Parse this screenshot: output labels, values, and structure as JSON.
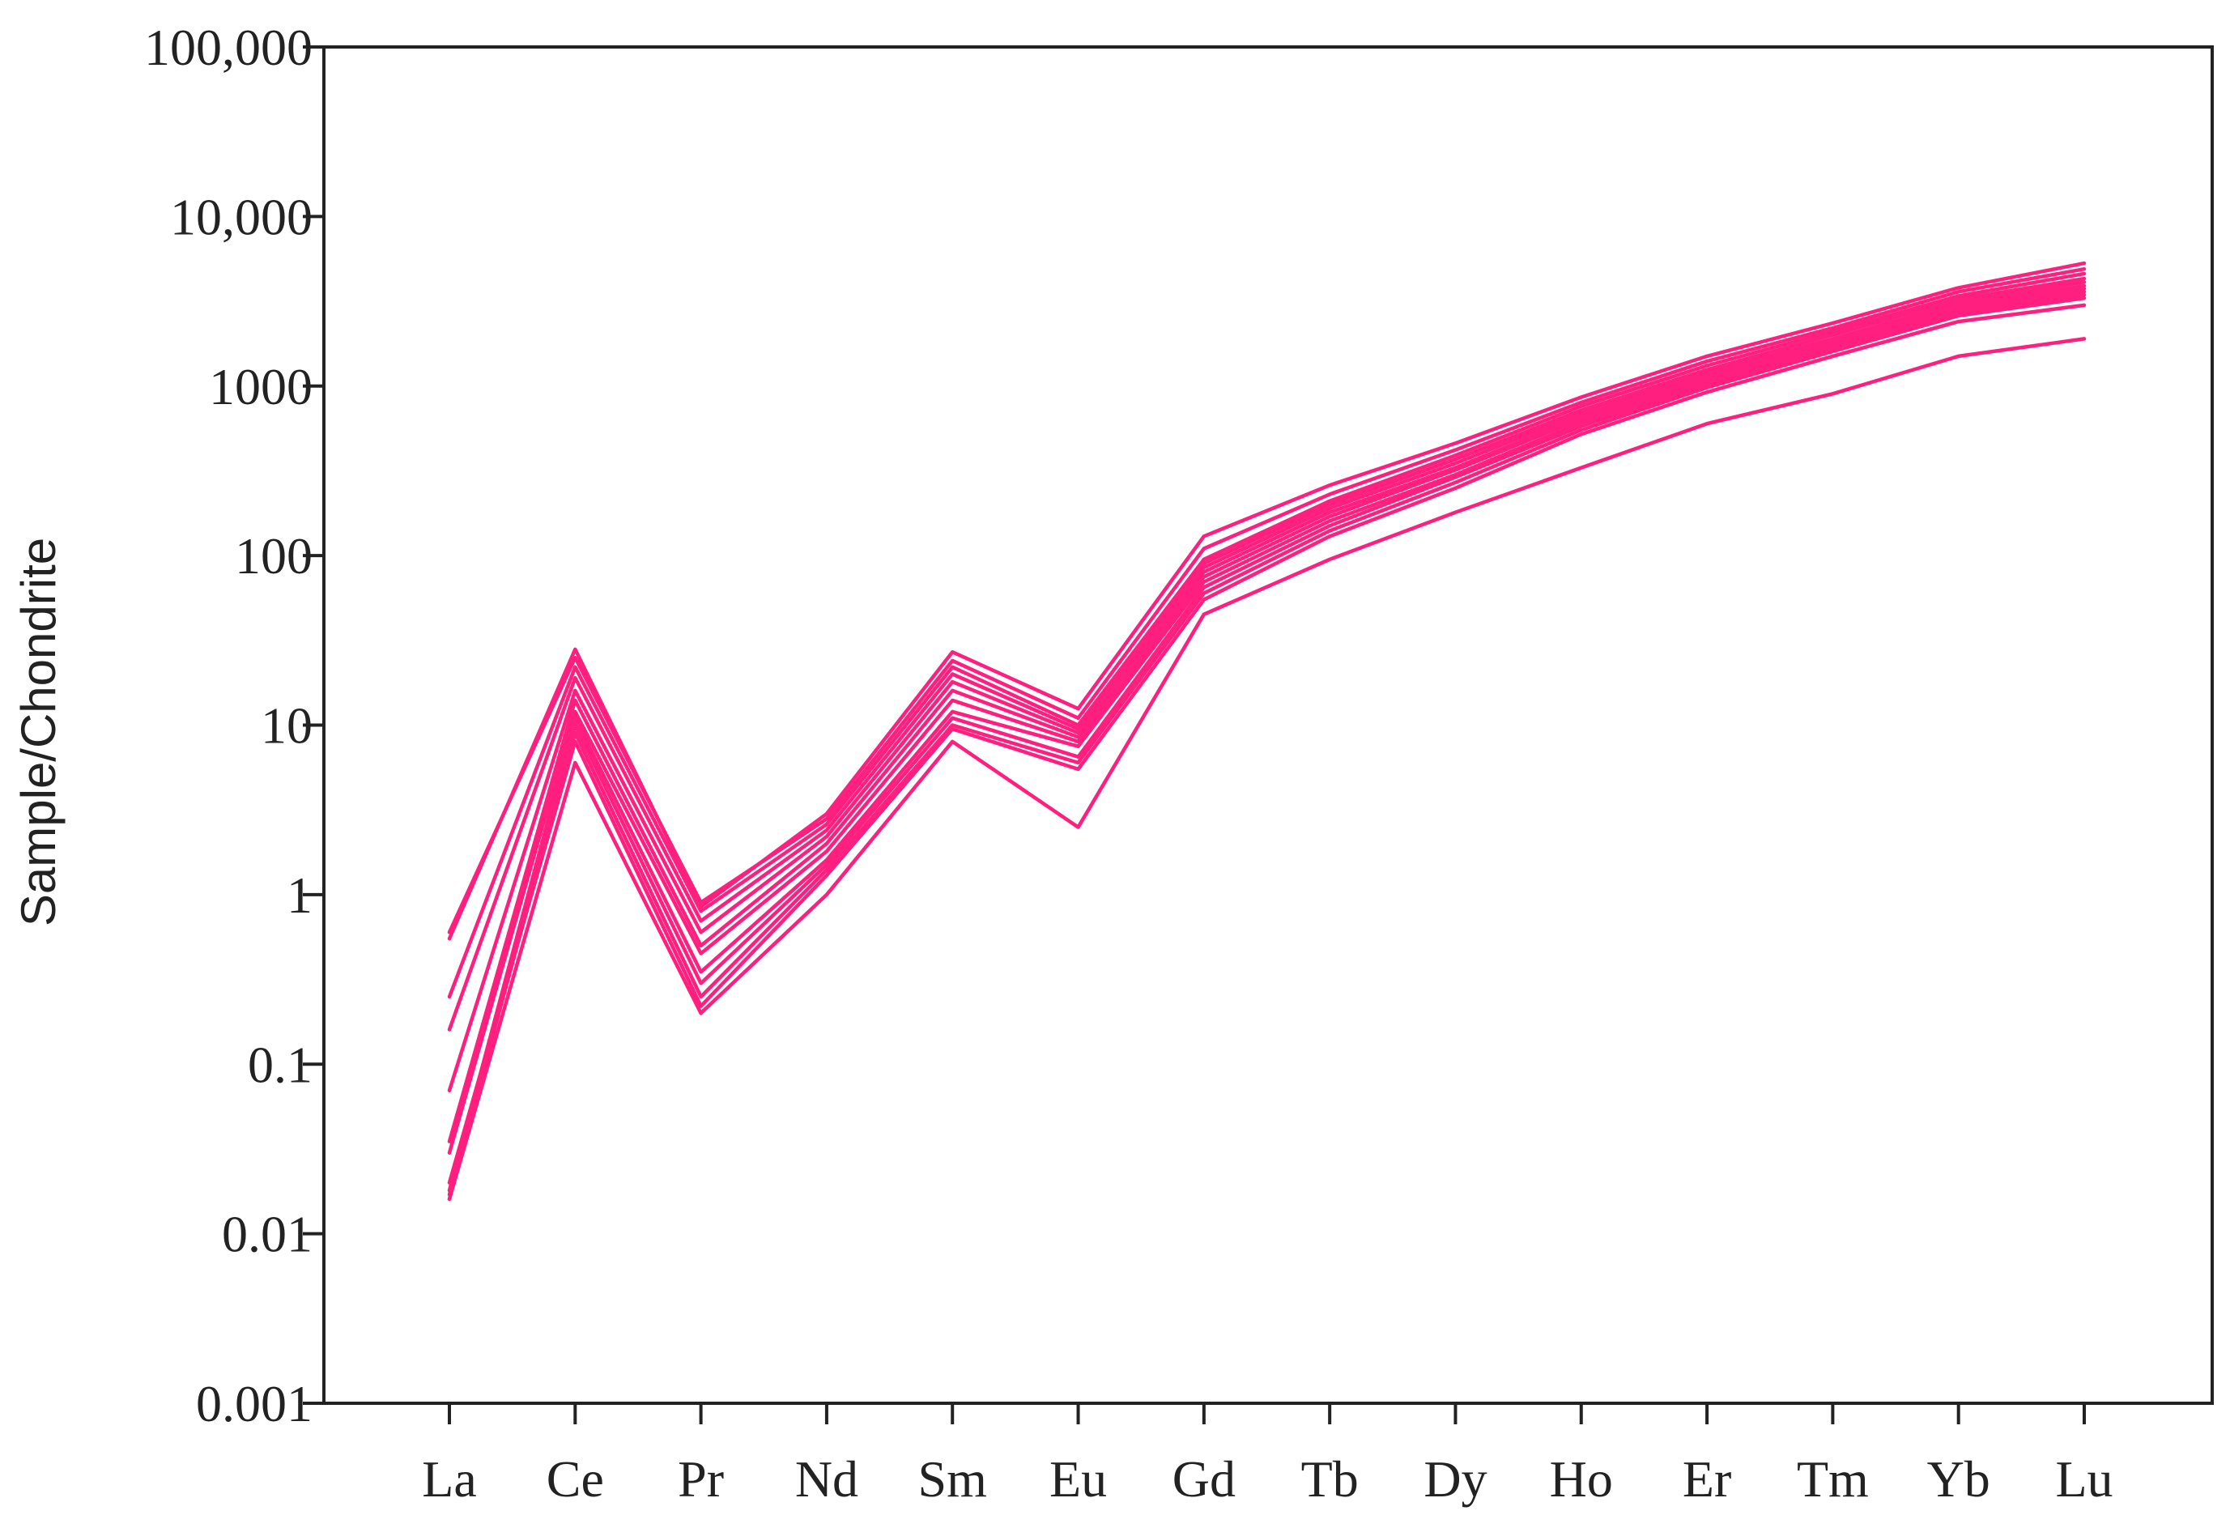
{
  "chart_data": {
    "type": "line",
    "title": "",
    "ylabel": "Sample/Chondrite",
    "xlabel": "",
    "y_scale": "log",
    "ylim": [
      0.001,
      100000
    ],
    "yticks": [
      {
        "value": 100000,
        "label": "100,000"
      },
      {
        "value": 10000,
        "label": "10,000"
      },
      {
        "value": 1000,
        "label": "1000"
      },
      {
        "value": 100,
        "label": "100"
      },
      {
        "value": 10,
        "label": "10"
      },
      {
        "value": 1,
        "label": "1"
      },
      {
        "value": 0.1,
        "label": "0.1"
      },
      {
        "value": 0.01,
        "label": "0.01"
      },
      {
        "value": 0.001,
        "label": "0.001"
      }
    ],
    "categories": [
      "La",
      "Ce",
      "Pr",
      "Nd",
      "Sm",
      "Eu",
      "Gd",
      "Tb",
      "Dy",
      "Ho",
      "Er",
      "Tm",
      "Yb",
      "Lu"
    ],
    "grid": false,
    "line_color": "#ff1f7f",
    "series": [
      {
        "values": [
          0.55,
          28,
          0.85,
          3.0,
          27,
          12.5,
          130,
          260,
          460,
          860,
          1500,
          2350,
          3800,
          5300
        ]
      },
      {
        "values": [
          0.6,
          25,
          0.9,
          2.8,
          24,
          11,
          110,
          230,
          420,
          800,
          1400,
          2200,
          3600,
          4900
        ]
      },
      {
        "values": [
          0.25,
          22,
          0.8,
          2.6,
          22,
          10,
          95,
          210,
          390,
          760,
          1320,
          2100,
          3400,
          4600
        ]
      },
      {
        "values": [
          0.16,
          19,
          0.7,
          2.4,
          20,
          9.5,
          90,
          200,
          370,
          720,
          1250,
          2000,
          3250,
          4300
        ]
      },
      {
        "values": [
          0.07,
          16,
          0.6,
          2.2,
          18,
          9,
          85,
          190,
          350,
          690,
          1200,
          1900,
          3100,
          4100
        ]
      },
      {
        "values": [
          0.035,
          14,
          0.5,
          2.0,
          16,
          8.5,
          80,
          180,
          330,
          660,
          1150,
          1850,
          3000,
          3900
        ]
      },
      {
        "values": [
          0.03,
          12,
          0.45,
          1.8,
          14,
          8,
          75,
          170,
          320,
          640,
          1100,
          1800,
          2900,
          3750
        ]
      },
      {
        "values": [
          0.018,
          11,
          0.35,
          1.6,
          12,
          7.5,
          70,
          160,
          300,
          610,
          1060,
          1750,
          2800,
          3600
        ]
      },
      {
        "values": [
          0.016,
          10,
          0.3,
          1.5,
          11,
          6.5,
          65,
          150,
          290,
          580,
          1020,
          1680,
          2700,
          3450
        ]
      },
      {
        "values": [
          0.017,
          9,
          0.25,
          1.4,
          10,
          6,
          60,
          140,
          270,
          550,
          980,
          1600,
          2600,
          3300
        ]
      },
      {
        "values": [
          0.02,
          8,
          0.22,
          1.3,
          9.5,
          5.5,
          55,
          130,
          250,
          520,
          920,
          1500,
          2400,
          3000
        ]
      },
      {
        "values": [
          0.016,
          6,
          0.2,
          1.0,
          8,
          2.5,
          45,
          95,
          180,
          330,
          600,
          900,
          1500,
          1900
        ]
      }
    ]
  }
}
